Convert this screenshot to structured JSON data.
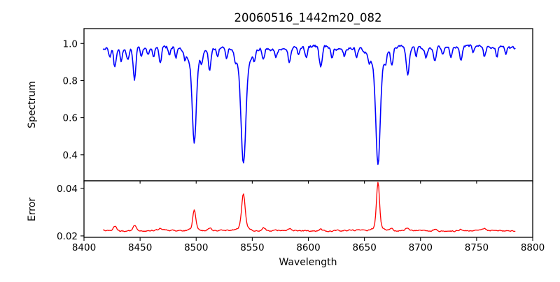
{
  "figure": {
    "title": "20060516_1442m20_082",
    "xlabel": "Wavelength",
    "background": "#ffffff",
    "axis_color": "#000000"
  },
  "chart_data": {
    "type": "line",
    "title": "20060516_1442m20_082",
    "xlabel": "Wavelength",
    "legend": "none",
    "grid": false,
    "xlim": [
      8400,
      8800
    ],
    "xticks": [
      8400,
      8450,
      8500,
      8550,
      8600,
      8650,
      8700,
      8750,
      8800
    ],
    "xtick_labels": [
      "8400",
      "8450",
      "8500",
      "8550",
      "8600",
      "8650",
      "8700",
      "8750",
      "8800"
    ],
    "data_x_start": 8417,
    "data_x_end": 8785,
    "data_x_step": 0.7,
    "noise_seed": 20060516,
    "panels": [
      {
        "name": "spectrum",
        "ylabel": "Spectrum",
        "line_color": "#0000ff",
        "ylim": [
          0.26,
          1.08
        ],
        "yticks": [
          0.4,
          0.6,
          0.8,
          1.0
        ],
        "ytick_labels": [
          "0.4",
          "0.6",
          "0.8",
          "1.0"
        ],
        "continuum": 0.978,
        "continuum_slope_per_angstrom": 2e-05,
        "noise_amplitude": 0.013,
        "absorption_lines": [
          [
            8423,
            0.05,
            0.9
          ],
          [
            8427.5,
            0.1,
            1.1
          ],
          [
            8433,
            0.06,
            0.9
          ],
          [
            8439,
            0.05,
            1.0
          ],
          [
            8445,
            0.17,
            1.2
          ],
          [
            8451,
            0.06,
            0.9
          ],
          [
            8457,
            0.04,
            0.9
          ],
          [
            8462,
            0.05,
            0.9
          ],
          [
            8468,
            0.09,
            1.1
          ],
          [
            8476,
            0.04,
            0.9
          ],
          [
            8482,
            0.06,
            0.9
          ],
          [
            8490,
            0.04,
            0.9
          ],
          [
            8498.3,
            0.42,
            1.7
          ],
          [
            8498.3,
            0.09,
            5.0
          ],
          [
            8505,
            0.05,
            0.9
          ],
          [
            8512,
            0.11,
            1.1
          ],
          [
            8519,
            0.04,
            0.9
          ],
          [
            8527,
            0.06,
            1.0
          ],
          [
            8535,
            0.04,
            0.9
          ],
          [
            8542.1,
            0.52,
            2.0
          ],
          [
            8542.1,
            0.11,
            6.0
          ],
          [
            8552,
            0.05,
            0.9
          ],
          [
            8560,
            0.06,
            1.0
          ],
          [
            8571,
            0.04,
            0.9
          ],
          [
            8583,
            0.08,
            1.1
          ],
          [
            8591,
            0.04,
            0.9
          ],
          [
            8598,
            0.06,
            1.0
          ],
          [
            8611,
            0.11,
            1.4
          ],
          [
            8621,
            0.06,
            1.0
          ],
          [
            8632,
            0.04,
            0.9
          ],
          [
            8643,
            0.05,
            0.9
          ],
          [
            8654,
            0.04,
            0.9
          ],
          [
            8662.1,
            0.52,
            1.9
          ],
          [
            8662.1,
            0.11,
            6.0
          ],
          [
            8669,
            0.05,
            0.9
          ],
          [
            8674.5,
            0.09,
            1.1
          ],
          [
            8688.6,
            0.15,
            1.4
          ],
          [
            8696,
            0.05,
            0.9
          ],
          [
            8705,
            0.04,
            0.9
          ],
          [
            8713,
            0.07,
            1.1
          ],
          [
            8720,
            0.04,
            0.9
          ],
          [
            8727,
            0.05,
            0.9
          ],
          [
            8736,
            0.07,
            1.1
          ],
          [
            8747,
            0.04,
            0.9
          ],
          [
            8757,
            0.06,
            1.0
          ],
          [
            8768,
            0.05,
            0.9
          ],
          [
            8776,
            0.04,
            0.9
          ]
        ],
        "notable_points": [
          {
            "x": 8498.3,
            "y": 0.45
          },
          {
            "x": 8542.1,
            "y": 0.33
          },
          {
            "x": 8662.1,
            "y": 0.33
          }
        ]
      },
      {
        "name": "error",
        "ylabel": "Error",
        "line_color": "#ff0000",
        "ylim": [
          0.0194,
          0.0432
        ],
        "yticks": [
          0.02,
          0.04
        ],
        "ytick_labels": [
          "0.02",
          "0.04"
        ],
        "baseline": 0.0222,
        "noise_amplitude": 0.0004,
        "emission_peaks": [
          [
            8427.5,
            0.002,
            1.4
          ],
          [
            8445,
            0.0026,
            1.4
          ],
          [
            8468,
            0.0008,
            1.4
          ],
          [
            8498.3,
            0.008,
            1.3
          ],
          [
            8498.3,
            0.0012,
            4.0
          ],
          [
            8512,
            0.0012,
            1.5
          ],
          [
            8542.1,
            0.0138,
            1.5
          ],
          [
            8542.1,
            0.0018,
            5.0
          ],
          [
            8560,
            0.0015,
            1.5
          ],
          [
            8583,
            0.0007,
            1.5
          ],
          [
            8611,
            0.0007,
            1.5
          ],
          [
            8662.1,
            0.0186,
            1.3
          ],
          [
            8662.1,
            0.002,
            4.0
          ],
          [
            8674,
            0.0009,
            1.5
          ],
          [
            8688,
            0.0011,
            1.5
          ],
          [
            8713,
            0.0006,
            1.5
          ],
          [
            8736,
            0.0007,
            1.5
          ],
          [
            8757,
            0.0008,
            1.5
          ]
        ],
        "notable_points": [
          {
            "x": 8498.3,
            "y": 0.0314
          },
          {
            "x": 8542.1,
            "y": 0.0378
          },
          {
            "x": 8662.1,
            "y": 0.0428
          }
        ]
      }
    ]
  }
}
